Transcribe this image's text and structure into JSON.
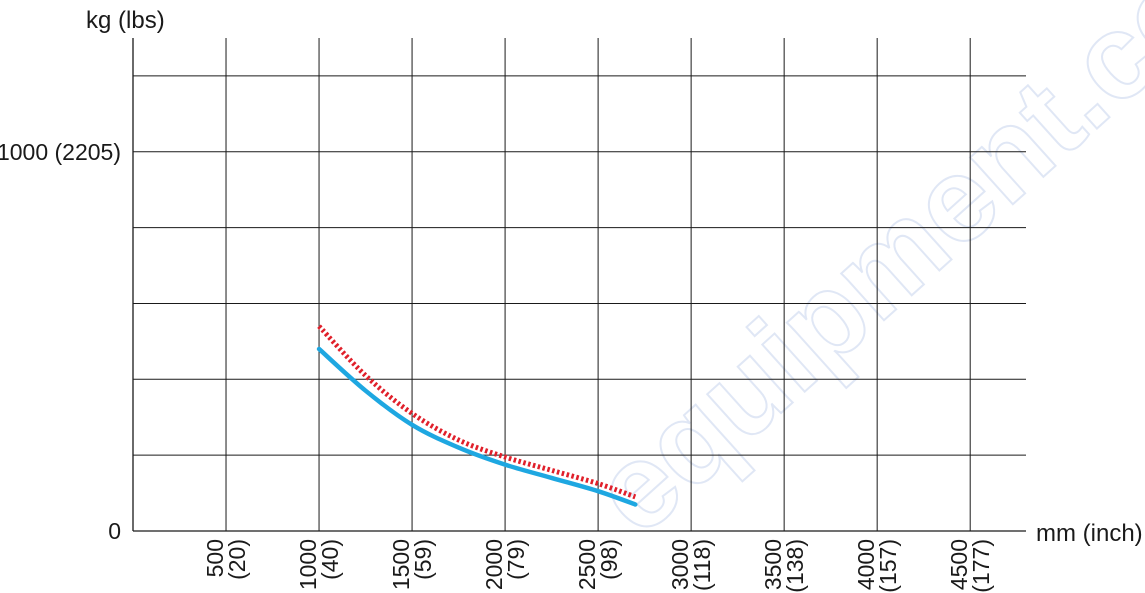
{
  "chart_data": {
    "type": "line",
    "ylabel": "kg (lbs)",
    "xlabel": "mm (inch)",
    "xlim": [
      0,
      4800
    ],
    "ylim": [
      0,
      1300
    ],
    "x_ticks": [
      {
        "value": 500,
        "mm": "500",
        "inch": "(20)"
      },
      {
        "value": 1000,
        "mm": "1000",
        "inch": "(40)"
      },
      {
        "value": 1500,
        "mm": "1500",
        "inch": "(59)"
      },
      {
        "value": 2000,
        "mm": "2000",
        "inch": "(79)"
      },
      {
        "value": 2500,
        "mm": "2500",
        "inch": "(98)"
      },
      {
        "value": 3000,
        "mm": "3000",
        "inch": "(118)"
      },
      {
        "value": 3500,
        "mm": "3500",
        "inch": "(138)"
      },
      {
        "value": 4000,
        "mm": "4000",
        "inch": "(157)"
      },
      {
        "value": 4500,
        "mm": "4500",
        "inch": "(177)"
      }
    ],
    "y_ticks": [
      {
        "value": 0,
        "label": "0"
      },
      {
        "value": 1000,
        "label": "1000 (2205)"
      }
    ],
    "x_grid": [
      500,
      1000,
      1500,
      2000,
      2500,
      3000,
      3500,
      4000,
      4500
    ],
    "y_grid": [
      200,
      400,
      600,
      800,
      1000,
      1200
    ],
    "grid": true,
    "series": [
      {
        "style": "solid",
        "color": "#1ea7e1",
        "x": [
          1000,
          1250,
          1500,
          1750,
          2000,
          2250,
          2500,
          2700
        ],
        "y": [
          480,
          370,
          280,
          220,
          175,
          140,
          105,
          70
        ]
      },
      {
        "style": "dotted",
        "color": "#e0202b",
        "x": [
          1000,
          1250,
          1500,
          1750,
          2000,
          2250,
          2500,
          2700
        ],
        "y": [
          540,
          410,
          310,
          240,
          195,
          160,
          125,
          90
        ]
      }
    ]
  }
}
